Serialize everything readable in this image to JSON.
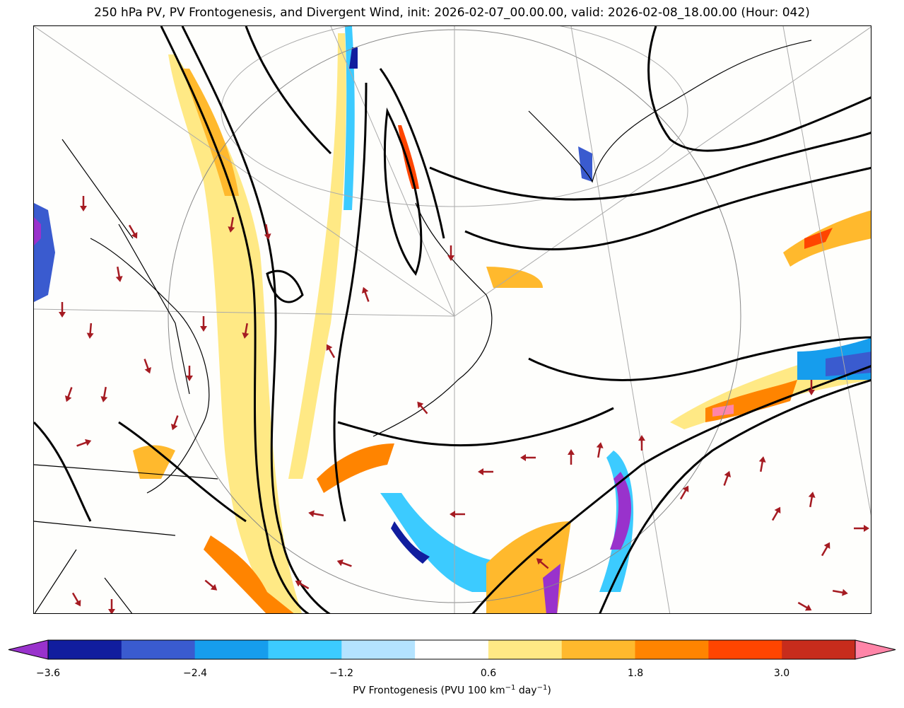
{
  "title": "250 hPa PV, PV Frontogenesis, and Divergent Wind, init: 2026-02-07_00.00.00, valid: 2026-02-08_18.00.00 (Hour: 042)",
  "colorbar": {
    "label_main": "PV Frontogenesis (PVU 100 km",
    "label_sup1": "−1",
    "label_mid": " day",
    "label_sup2": "−1",
    "label_end": ")",
    "levels": [
      -3.6,
      -3.0,
      -2.4,
      -1.8,
      -1.2,
      -0.6,
      0.6,
      1.2,
      1.8,
      2.4,
      3.0,
      3.6
    ],
    "colors": [
      "#111d9e",
      "#3a5bcf",
      "#169ded",
      "#3ccbff",
      "#b4e3ff",
      "#ffffff",
      "#ffe985",
      "#ffb92d",
      "#ff8400",
      "#ff4500",
      "#c72c1c"
    ],
    "under_color": "#9932cc",
    "over_color": "#ff85a8",
    "ticks": [
      "−3.6",
      "−2.4",
      "−1.2",
      "0.6",
      "1.8",
      "3.0"
    ]
  },
  "vector_color": "#a51b22"
}
